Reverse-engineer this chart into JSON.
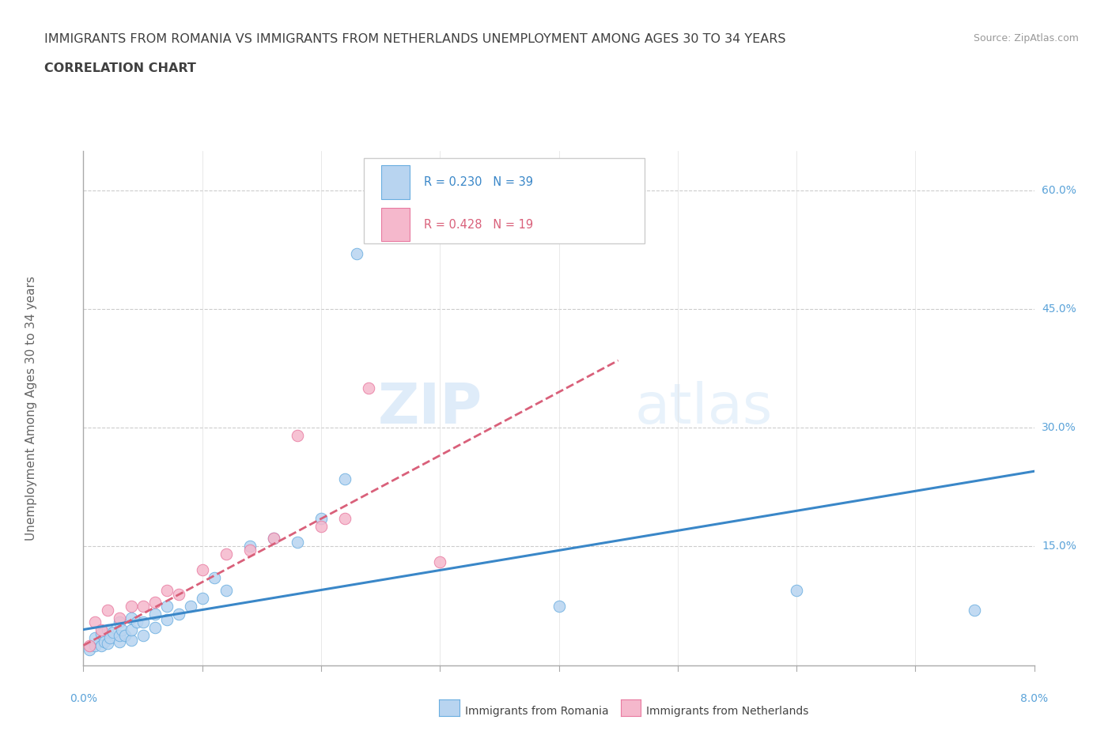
{
  "title_line1": "IMMIGRANTS FROM ROMANIA VS IMMIGRANTS FROM NETHERLANDS UNEMPLOYMENT AMONG AGES 30 TO 34 YEARS",
  "title_line2": "CORRELATION CHART",
  "source_text": "Source: ZipAtlas.com",
  "ylabel": "Unemployment Among Ages 30 to 34 years",
  "watermark_zip": "ZIP",
  "watermark_atlas": "atlas",
  "legend_romania": "R = 0.230   N = 39",
  "legend_netherlands": "R = 0.428   N = 19",
  "legend_label1": "Immigrants from Romania",
  "legend_label2": "Immigrants from Netherlands",
  "romania_fill_color": "#b8d4f0",
  "netherlands_fill_color": "#f5b8cc",
  "romania_edge_color": "#6aaee0",
  "netherlands_edge_color": "#e87aa0",
  "romania_line_color": "#3a87c8",
  "netherlands_line_color": "#d9607a",
  "background_color": "#ffffff",
  "grid_color": "#cccccc",
  "title_color": "#404040",
  "right_tick_color": "#5ba3d9",
  "xlim": [
    0.0,
    0.08
  ],
  "ylim": [
    0.0,
    0.65
  ],
  "romania_x": [
    0.0005,
    0.001,
    0.001,
    0.0015,
    0.0015,
    0.0018,
    0.002,
    0.002,
    0.0022,
    0.0025,
    0.003,
    0.003,
    0.003,
    0.0032,
    0.0035,
    0.004,
    0.004,
    0.004,
    0.0045,
    0.005,
    0.005,
    0.006,
    0.006,
    0.007,
    0.007,
    0.008,
    0.009,
    0.01,
    0.011,
    0.012,
    0.014,
    0.016,
    0.018,
    0.02,
    0.022,
    0.023,
    0.04,
    0.06,
    0.075
  ],
  "romania_y": [
    0.02,
    0.025,
    0.035,
    0.025,
    0.04,
    0.03,
    0.028,
    0.045,
    0.035,
    0.042,
    0.03,
    0.038,
    0.055,
    0.045,
    0.038,
    0.032,
    0.045,
    0.06,
    0.055,
    0.038,
    0.055,
    0.048,
    0.065,
    0.058,
    0.075,
    0.065,
    0.075,
    0.085,
    0.11,
    0.095,
    0.15,
    0.16,
    0.155,
    0.185,
    0.235,
    0.52,
    0.075,
    0.095,
    0.07
  ],
  "netherlands_x": [
    0.0005,
    0.001,
    0.0015,
    0.002,
    0.003,
    0.004,
    0.005,
    0.006,
    0.007,
    0.008,
    0.01,
    0.012,
    0.014,
    0.016,
    0.018,
    0.02,
    0.022,
    0.024,
    0.03
  ],
  "netherlands_y": [
    0.025,
    0.055,
    0.045,
    0.07,
    0.06,
    0.075,
    0.075,
    0.08,
    0.095,
    0.09,
    0.12,
    0.14,
    0.145,
    0.16,
    0.29,
    0.175,
    0.185,
    0.35,
    0.13
  ],
  "romania_trend_x": [
    0.0,
    0.08
  ],
  "romania_trend_y": [
    0.045,
    0.245
  ],
  "netherlands_trend_x": [
    0.0,
    0.045
  ],
  "netherlands_trend_y": [
    0.025,
    0.385
  ]
}
